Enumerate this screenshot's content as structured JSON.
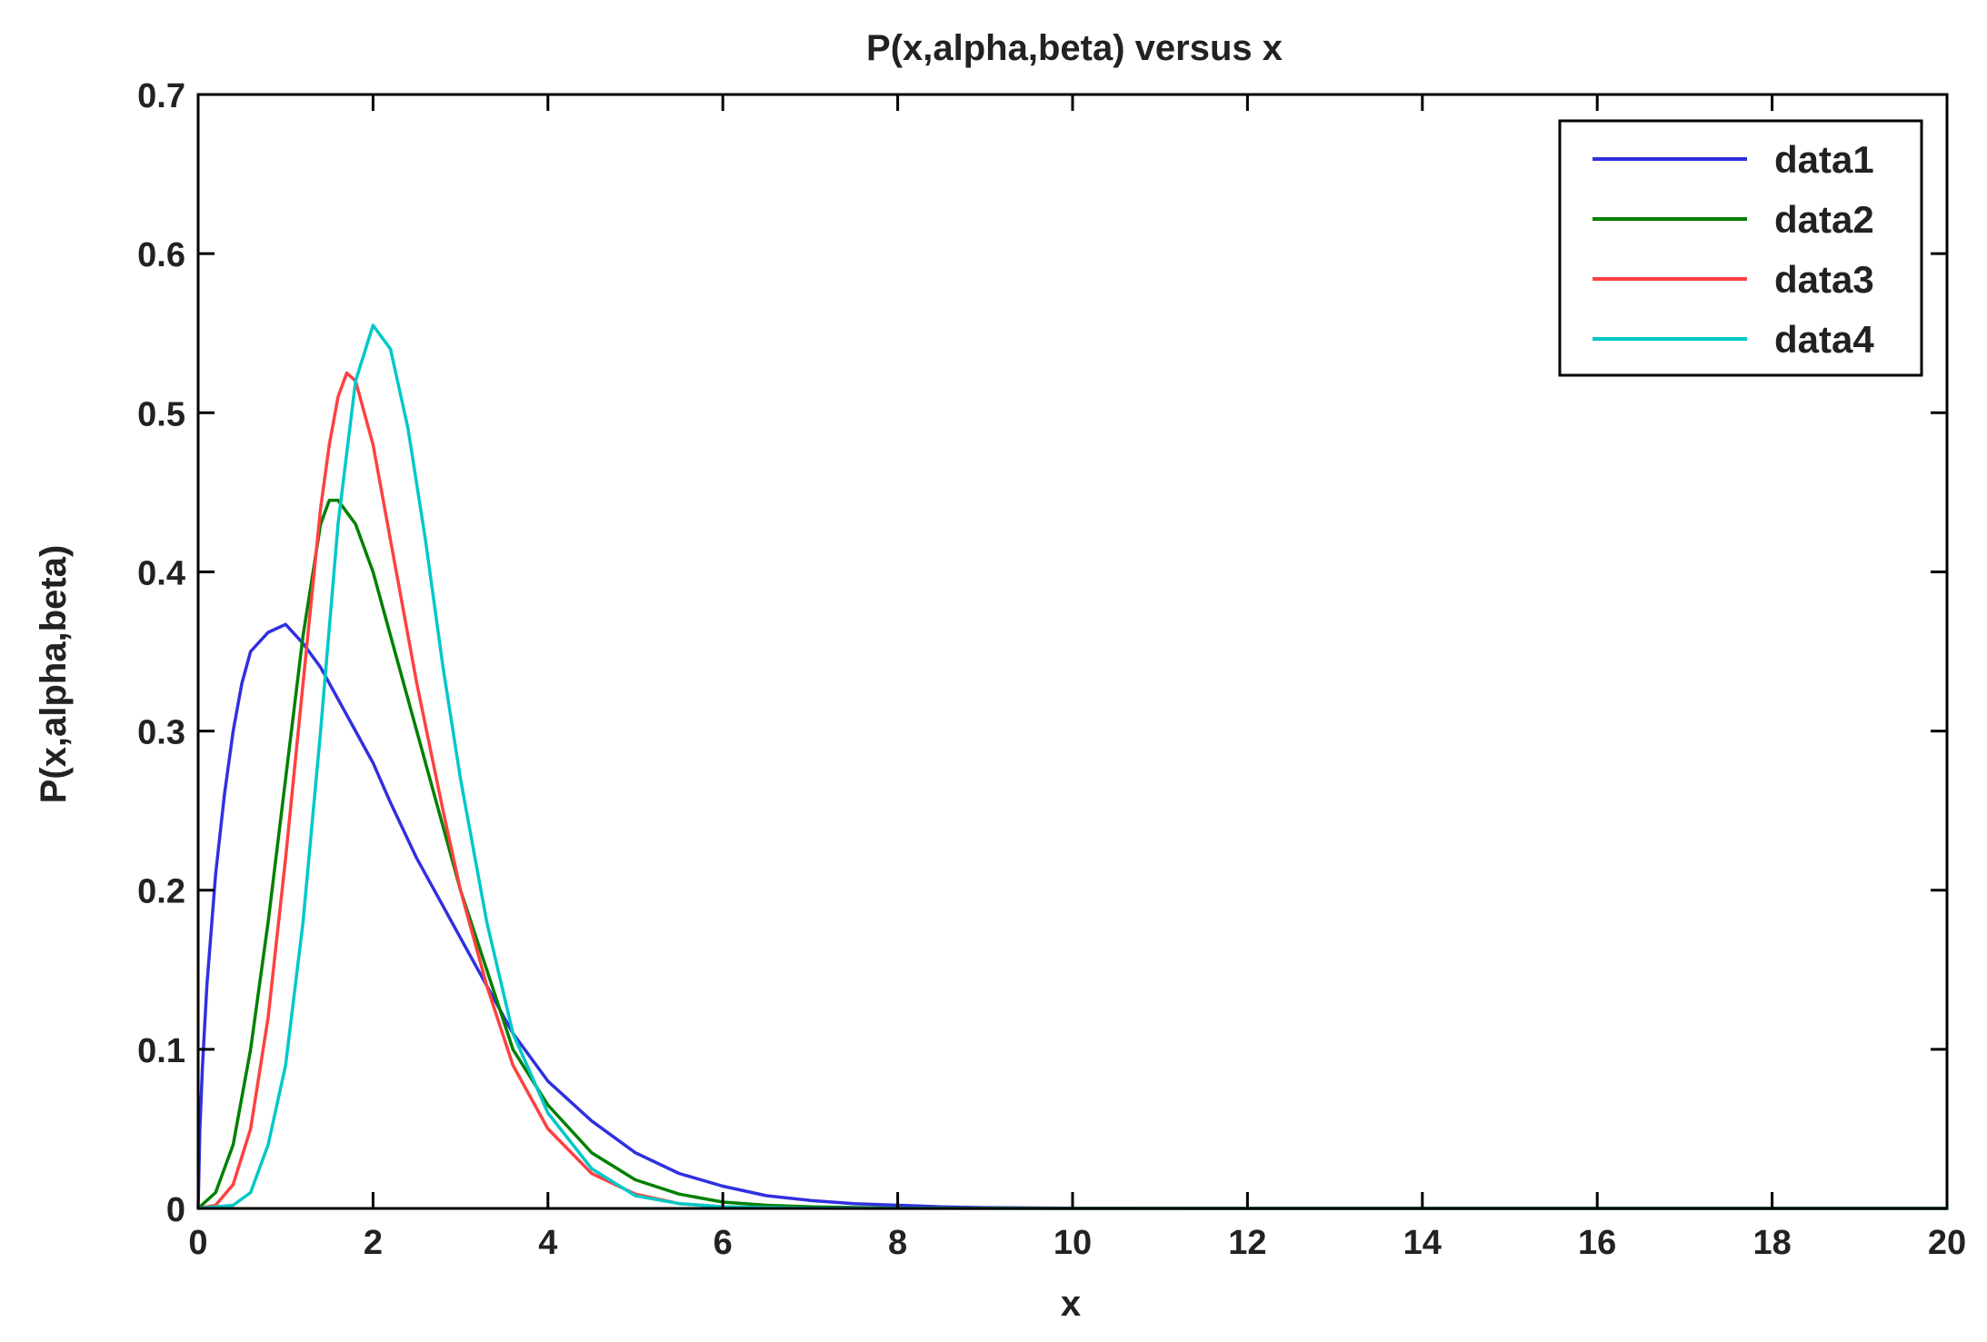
{
  "chart_data": {
    "type": "line",
    "title": "P(x,alpha,beta) versus x",
    "xlabel": "x",
    "ylabel": "P(x,alpha,beta)",
    "xlim": [
      0,
      20
    ],
    "ylim": [
      0,
      0.7
    ],
    "x_ticks": [
      0,
      2,
      4,
      6,
      8,
      10,
      12,
      14,
      16,
      18,
      20
    ],
    "y_ticks": [
      0,
      0.1,
      0.2,
      0.3,
      0.4,
      0.5,
      0.6,
      0.7
    ],
    "grid": false,
    "legend_position": "top-right",
    "series": [
      {
        "name": "data1",
        "color": "#3030e0",
        "points": [
          [
            0,
            0
          ],
          [
            0.02,
            0.05
          ],
          [
            0.05,
            0.09
          ],
          [
            0.1,
            0.14
          ],
          [
            0.2,
            0.21
          ],
          [
            0.3,
            0.26
          ],
          [
            0.4,
            0.3
          ],
          [
            0.5,
            0.33
          ],
          [
            0.6,
            0.35
          ],
          [
            0.8,
            0.362
          ],
          [
            1.0,
            0.367
          ],
          [
            1.2,
            0.355
          ],
          [
            1.4,
            0.34
          ],
          [
            1.6,
            0.32
          ],
          [
            1.8,
            0.3
          ],
          [
            2.0,
            0.28
          ],
          [
            2.2,
            0.255
          ],
          [
            2.5,
            0.22
          ],
          [
            2.8,
            0.19
          ],
          [
            3.0,
            0.17
          ],
          [
            3.3,
            0.14
          ],
          [
            3.6,
            0.11
          ],
          [
            4.0,
            0.08
          ],
          [
            4.5,
            0.055
          ],
          [
            5.0,
            0.035
          ],
          [
            5.5,
            0.022
          ],
          [
            6.0,
            0.014
          ],
          [
            6.5,
            0.008
          ],
          [
            7.0,
            0.005
          ],
          [
            7.5,
            0.003
          ],
          [
            8.0,
            0.002
          ],
          [
            8.5,
            0.001
          ],
          [
            9.0,
            0.0005
          ],
          [
            10,
            0.0001
          ],
          [
            12,
            0
          ],
          [
            15,
            0
          ],
          [
            20,
            0
          ]
        ]
      },
      {
        "name": "data2",
        "color": "#008000",
        "points": [
          [
            0,
            0
          ],
          [
            0.2,
            0.01
          ],
          [
            0.4,
            0.04
          ],
          [
            0.6,
            0.1
          ],
          [
            0.8,
            0.18
          ],
          [
            1.0,
            0.27
          ],
          [
            1.2,
            0.36
          ],
          [
            1.4,
            0.43
          ],
          [
            1.5,
            0.445
          ],
          [
            1.6,
            0.445
          ],
          [
            1.8,
            0.43
          ],
          [
            2.0,
            0.4
          ],
          [
            2.2,
            0.36
          ],
          [
            2.5,
            0.3
          ],
          [
            2.8,
            0.24
          ],
          [
            3.0,
            0.2
          ],
          [
            3.3,
            0.15
          ],
          [
            3.6,
            0.1
          ],
          [
            4.0,
            0.065
          ],
          [
            4.5,
            0.035
          ],
          [
            5.0,
            0.018
          ],
          [
            5.5,
            0.009
          ],
          [
            6.0,
            0.004
          ],
          [
            6.5,
            0.002
          ],
          [
            7.0,
            0.001
          ],
          [
            8.0,
            0.0002
          ],
          [
            10,
            0
          ],
          [
            15,
            0
          ],
          [
            20,
            0
          ]
        ]
      },
      {
        "name": "data3",
        "color": "#ff4040",
        "points": [
          [
            0,
            0
          ],
          [
            0.2,
            0.002
          ],
          [
            0.4,
            0.015
          ],
          [
            0.6,
            0.05
          ],
          [
            0.8,
            0.12
          ],
          [
            1.0,
            0.22
          ],
          [
            1.2,
            0.33
          ],
          [
            1.4,
            0.44
          ],
          [
            1.5,
            0.48
          ],
          [
            1.6,
            0.51
          ],
          [
            1.7,
            0.525
          ],
          [
            1.8,
            0.52
          ],
          [
            2.0,
            0.48
          ],
          [
            2.2,
            0.42
          ],
          [
            2.5,
            0.33
          ],
          [
            2.8,
            0.25
          ],
          [
            3.0,
            0.2
          ],
          [
            3.3,
            0.14
          ],
          [
            3.6,
            0.09
          ],
          [
            4.0,
            0.05
          ],
          [
            4.5,
            0.022
          ],
          [
            5.0,
            0.009
          ],
          [
            5.5,
            0.003
          ],
          [
            6.0,
            0.001
          ],
          [
            7.0,
            0.0001
          ],
          [
            10,
            0
          ],
          [
            15,
            0
          ],
          [
            20,
            0
          ]
        ]
      },
      {
        "name": "data4",
        "color": "#00c8c8",
        "points": [
          [
            0,
            0
          ],
          [
            0.4,
            0.002
          ],
          [
            0.6,
            0.01
          ],
          [
            0.8,
            0.04
          ],
          [
            1.0,
            0.09
          ],
          [
            1.2,
            0.18
          ],
          [
            1.4,
            0.3
          ],
          [
            1.6,
            0.43
          ],
          [
            1.8,
            0.52
          ],
          [
            2.0,
            0.555
          ],
          [
            2.2,
            0.54
          ],
          [
            2.4,
            0.49
          ],
          [
            2.6,
            0.42
          ],
          [
            2.8,
            0.34
          ],
          [
            3.0,
            0.27
          ],
          [
            3.3,
            0.18
          ],
          [
            3.6,
            0.11
          ],
          [
            4.0,
            0.06
          ],
          [
            4.5,
            0.025
          ],
          [
            5.0,
            0.008
          ],
          [
            5.5,
            0.003
          ],
          [
            6.0,
            0.001
          ],
          [
            7.0,
            0.0001
          ],
          [
            10,
            0
          ],
          [
            15,
            0
          ],
          [
            20,
            0
          ]
        ]
      }
    ]
  }
}
